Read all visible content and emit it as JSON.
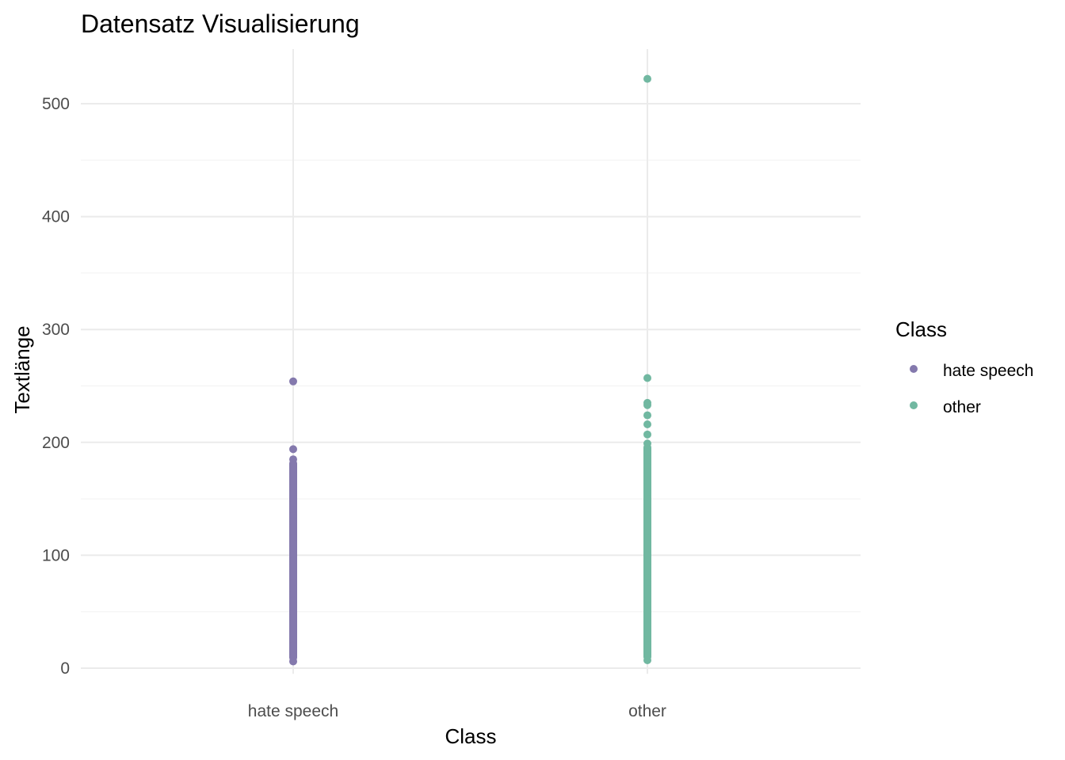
{
  "chart_data": {
    "type": "scatter",
    "title": "Datensatz Visualisierung",
    "xlabel": "Class",
    "ylabel": "Textlänge",
    "categories": [
      "hate speech",
      "other"
    ],
    "ylim": [
      -5,
      545
    ],
    "yticks": [
      0,
      100,
      200,
      300,
      400,
      500
    ],
    "grid": true,
    "legend": {
      "title": "Class",
      "placement": "right",
      "entries": [
        "hate speech",
        "other"
      ]
    },
    "colors": {
      "hate speech": "#8479ad",
      "other": "#71b8a1"
    },
    "series": [
      {
        "name": "hate speech",
        "category": "hate speech",
        "values": [
          254,
          194,
          185,
          179,
          175,
          170,
          165,
          160,
          155,
          150,
          145,
          140,
          135,
          130,
          125,
          120,
          115,
          110,
          105,
          100,
          95,
          90,
          85,
          80,
          75,
          70,
          65,
          60,
          55,
          50,
          45,
          40,
          35,
          30,
          25,
          20,
          15,
          10,
          6
        ]
      },
      {
        "name": "other",
        "category": "other",
        "values": [
          522,
          257,
          235,
          233,
          224,
          216,
          207,
          199,
          194,
          191,
          185,
          182,
          178,
          174,
          170,
          165,
          160,
          155,
          150,
          145,
          140,
          135,
          130,
          125,
          120,
          115,
          110,
          105,
          100,
          95,
          90,
          85,
          80,
          75,
          70,
          65,
          60,
          55,
          50,
          45,
          40,
          35,
          30,
          25,
          20,
          15,
          10,
          7
        ]
      }
    ]
  }
}
